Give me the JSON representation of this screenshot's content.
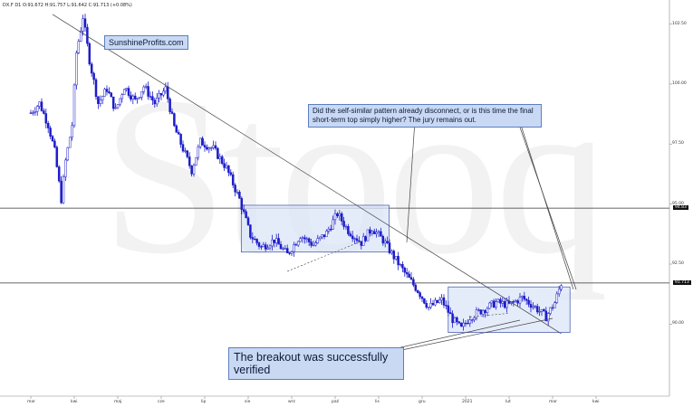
{
  "header": {
    "text": "DX.F  D1  O:91.672  H:91.757  L:91.642  C:91.713  (+0.08%)"
  },
  "watermark": {
    "text": "Stooq"
  },
  "annotations": {
    "brand": "SunshineProfits.com",
    "question": "Did the self-similar pattern already disconnect, or is this time the final short-term top simply higher? The jury remains out.",
    "breakout": "The breakout was successfully verified"
  },
  "colors": {
    "candle": "#1c1cc8",
    "box_fill": "#dbe6f8",
    "box_stroke": "#3a4fa8",
    "callout_fill": "#c9d9f3"
  },
  "chart_data": {
    "type": "candlestick",
    "title": "",
    "xlabel": "",
    "ylabel": "",
    "ylim": [
      87.0,
      103.5
    ],
    "y_ticks": [
      90.0,
      92.5,
      95.0,
      97.5,
      100.0,
      102.5
    ],
    "y_tick_labels": [
      "90.00",
      "92.50",
      "95.00",
      "97.50",
      "100.00",
      "102.50"
    ],
    "x_ticks": [
      "mar",
      "kwi",
      "maj",
      "cze",
      "lip",
      "sie",
      "wrz",
      "paź",
      "lis",
      "gru",
      "2021",
      "lut",
      "mar",
      "kwi"
    ],
    "x_range": [
      0,
      14
    ],
    "price_tags": [
      {
        "label": "94.83",
        "value": 94.83
      },
      {
        "label": "91.713",
        "value": 91.713
      }
    ],
    "horizontal_lines": [
      94.83,
      91.713
    ],
    "trendline": [
      {
        "x": 0.5,
        "y": 102.9
      },
      {
        "x": 12.2,
        "y": 89.6
      }
    ],
    "boxes": [
      {
        "x0": 4.84,
        "x1": 8.24,
        "y0": 93.0,
        "y1": 94.95
      },
      {
        "x0": 9.6,
        "x1": 12.4,
        "y0": 89.65,
        "y1": 91.55
      }
    ],
    "dashed_lines": [
      {
        "x0": 5.9,
        "y0": 92.2,
        "x1": 7.6,
        "y1": 93.45
      },
      {
        "x0": 10.1,
        "y0": 90.3,
        "x1": 11.0,
        "y1": 90.45
      }
    ],
    "trend_path": [
      {
        "x": 0.0,
        "y": 98.8
      },
      {
        "x": 0.2,
        "y": 99.2
      },
      {
        "x": 0.4,
        "y": 98.3
      },
      {
        "x": 0.55,
        "y": 97.2
      },
      {
        "x": 0.7,
        "y": 95.2
      },
      {
        "x": 0.8,
        "y": 96.8
      },
      {
        "x": 0.95,
        "y": 98.3
      },
      {
        "x": 1.05,
        "y": 101.3
      },
      {
        "x": 1.2,
        "y": 102.8
      },
      {
        "x": 1.35,
        "y": 101.0
      },
      {
        "x": 1.55,
        "y": 99.2
      },
      {
        "x": 1.75,
        "y": 99.8
      },
      {
        "x": 1.95,
        "y": 98.9
      },
      {
        "x": 2.15,
        "y": 99.9
      },
      {
        "x": 2.4,
        "y": 99.3
      },
      {
        "x": 2.6,
        "y": 99.9
      },
      {
        "x": 2.85,
        "y": 99.2
      },
      {
        "x": 3.1,
        "y": 99.8
      },
      {
        "x": 3.3,
        "y": 98.2
      },
      {
        "x": 3.5,
        "y": 97.3
      },
      {
        "x": 3.7,
        "y": 96.4
      },
      {
        "x": 3.9,
        "y": 97.6
      },
      {
        "x": 4.2,
        "y": 97.3
      },
      {
        "x": 4.5,
        "y": 96.5
      },
      {
        "x": 4.8,
        "y": 95.2
      },
      {
        "x": 5.05,
        "y": 93.7
      },
      {
        "x": 5.3,
        "y": 93.2
      },
      {
        "x": 5.6,
        "y": 93.5
      },
      {
        "x": 5.9,
        "y": 92.9
      },
      {
        "x": 6.2,
        "y": 93.7
      },
      {
        "x": 6.5,
        "y": 93.3
      },
      {
        "x": 6.8,
        "y": 93.8
      },
      {
        "x": 7.05,
        "y": 94.6
      },
      {
        "x": 7.3,
        "y": 93.9
      },
      {
        "x": 7.6,
        "y": 93.4
      },
      {
        "x": 7.85,
        "y": 94.0
      },
      {
        "x": 8.1,
        "y": 93.5
      },
      {
        "x": 8.35,
        "y": 92.8
      },
      {
        "x": 8.65,
        "y": 92.0
      },
      {
        "x": 8.9,
        "y": 91.4
      },
      {
        "x": 9.15,
        "y": 90.7
      },
      {
        "x": 9.45,
        "y": 91.0
      },
      {
        "x": 9.7,
        "y": 90.2
      },
      {
        "x": 9.9,
        "y": 89.8
      },
      {
        "x": 10.1,
        "y": 90.3
      },
      {
        "x": 10.4,
        "y": 90.6
      },
      {
        "x": 10.7,
        "y": 90.9
      },
      {
        "x": 11.0,
        "y": 90.8
      },
      {
        "x": 11.3,
        "y": 91.1
      },
      {
        "x": 11.6,
        "y": 90.7
      },
      {
        "x": 11.85,
        "y": 90.3
      },
      {
        "x": 12.05,
        "y": 90.9
      },
      {
        "x": 12.2,
        "y": 91.7
      }
    ]
  }
}
